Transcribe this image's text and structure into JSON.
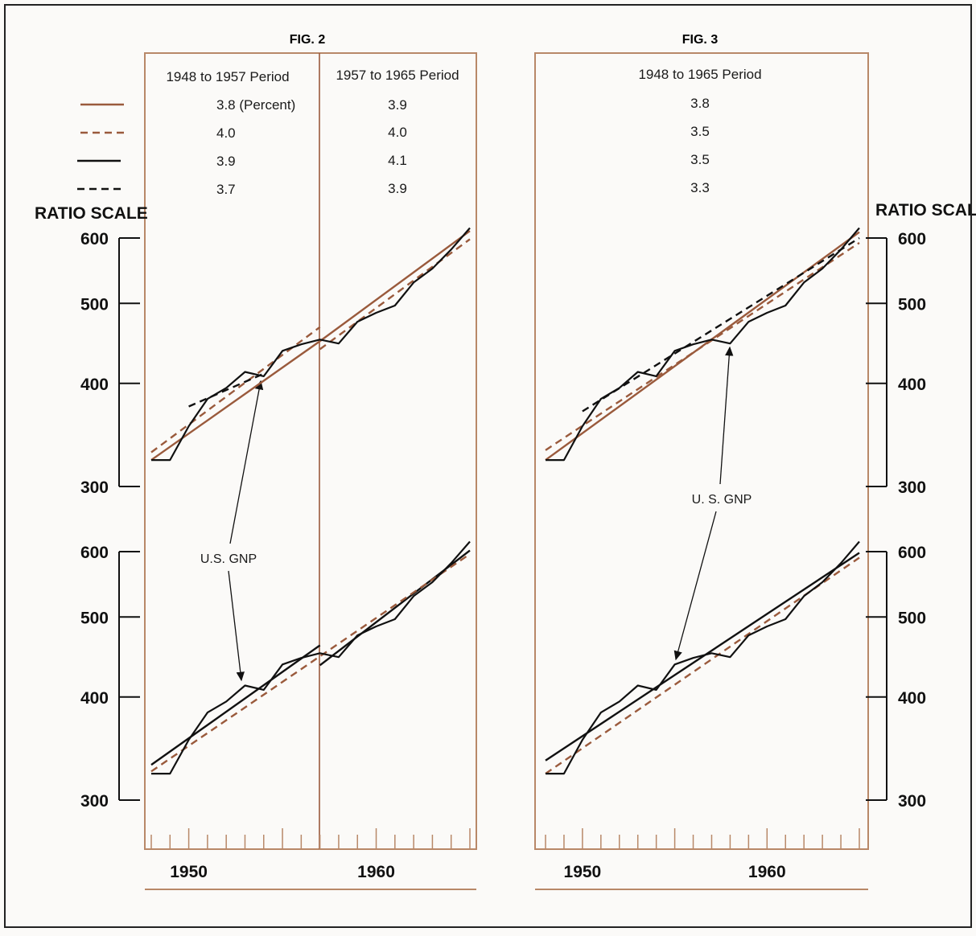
{
  "colors": {
    "brown": "#9a5a3c",
    "black": "#111111"
  },
  "legend": {
    "styles": [
      {
        "name": "brown-solid",
        "color": "#9a5a3c",
        "dash": "solid"
      },
      {
        "name": "brown-dashed",
        "color": "#9a5a3c",
        "dash": "dashed"
      },
      {
        "name": "black-solid",
        "color": "#111111",
        "dash": "solid"
      },
      {
        "name": "black-dashed",
        "color": "#111111",
        "dash": "dashed"
      }
    ]
  },
  "ratio_scale_label": "RATIO SCALE",
  "chart_data": [
    {
      "type": "line",
      "title": "FIG. 2",
      "y_scale": "log",
      "ylim": [
        300,
        600
      ],
      "y_ticks": [
        300,
        400,
        500,
        600
      ],
      "y_tick_labels": [
        "300",
        "400",
        "500",
        "600"
      ],
      "xlim": [
        1948,
        1966
      ],
      "x_tick_labels": [
        "1950",
        "1960"
      ],
      "periods": [
        {
          "label": "1948 to 1957 Period",
          "range": [
            1948,
            1957
          ],
          "rates": [
            "3.8 (Percent)",
            "4.0",
            "3.9",
            "3.7"
          ]
        },
        {
          "label": "1957 to 1965 Period",
          "range": [
            1957,
            1965
          ],
          "rates": [
            "3.9",
            "4.0",
            "4.1",
            "3.9"
          ]
        }
      ],
      "annotation": "U.S.  GNP",
      "gnp": {
        "x": [
          1948,
          1949,
          1950,
          1951,
          1952,
          1953,
          1954,
          1955,
          1956,
          1957,
          1958,
          1959,
          1960,
          1961,
          1962,
          1963,
          1964,
          1965
        ],
        "y": [
          323,
          323,
          355,
          383,
          395,
          413,
          408,
          438,
          446,
          452,
          447,
          475,
          487,
          497,
          530,
          551,
          581,
          617
        ]
      },
      "panels": [
        {
          "name": "upper",
          "trends": [
            {
              "style": "brown-solid",
              "segments": [
                {
                  "x": [
                    1948,
                    1957
                  ],
                  "y": [
                    323,
                    450
                  ]
                },
                {
                  "x": [
                    1957,
                    1965
                  ],
                  "y": [
                    450,
                    612
                  ]
                }
              ]
            },
            {
              "style": "brown-dashed",
              "segments": [
                {
                  "x": [
                    1948,
                    1957
                  ],
                  "y": [
                    330,
                    468
                  ]
                },
                {
                  "x": [
                    1957,
                    1965
                  ],
                  "y": [
                    440,
                    598
                  ]
                }
              ]
            },
            {
              "style": "black-dashed",
              "segments": [
                {
                  "x": [
                    1950,
                    1954
                  ],
                  "y": [
                    375,
                    411
                  ]
                }
              ]
            }
          ]
        },
        {
          "name": "lower",
          "trends": [
            {
              "style": "black-solid",
              "segments": [
                {
                  "x": [
                    1948,
                    1957
                  ],
                  "y": [
                    331,
                    462
                  ]
                },
                {
                  "x": [
                    1957,
                    1965
                  ],
                  "y": [
                    437,
                    602
                  ]
                }
              ]
            },
            {
              "style": "brown-dashed",
              "segments": [
                {
                  "x": [
                    1948,
                    1965
                  ],
                  "y": [
                    325,
                    596
                  ]
                }
              ]
            }
          ]
        }
      ]
    },
    {
      "type": "line",
      "title": "FIG. 3",
      "y_scale": "log",
      "ylim": [
        300,
        600
      ],
      "y_ticks": [
        300,
        400,
        500,
        600
      ],
      "y_tick_labels": [
        "300",
        "400",
        "500",
        "600"
      ],
      "xlim": [
        1948,
        1966
      ],
      "x_tick_labels": [
        "1950",
        "1960"
      ],
      "periods": [
        {
          "label": "1948 to 1965 Period",
          "range": [
            1948,
            1965
          ],
          "rates": [
            "3.8",
            "3.5",
            "3.5",
            "3.3"
          ]
        }
      ],
      "annotation": "U. S. GNP",
      "gnp": {
        "x": [
          1948,
          1949,
          1950,
          1951,
          1952,
          1953,
          1954,
          1955,
          1956,
          1957,
          1958,
          1959,
          1960,
          1961,
          1962,
          1963,
          1964,
          1965
        ],
        "y": [
          323,
          323,
          355,
          383,
          395,
          413,
          408,
          438,
          446,
          452,
          447,
          475,
          487,
          497,
          530,
          551,
          581,
          617
        ]
      },
      "panels": [
        {
          "name": "upper",
          "trends": [
            {
              "style": "brown-solid",
              "segments": [
                {
                  "x": [
                    1948,
                    1965
                  ],
                  "y": [
                    323,
                    610
                  ]
                }
              ]
            },
            {
              "style": "brown-dashed",
              "segments": [
                {
                  "x": [
                    1948,
                    1965
                  ],
                  "y": [
                    332,
                    592
                  ]
                }
              ]
            },
            {
              "style": "black-dashed",
              "segments": [
                {
                  "x": [
                    1950,
                    1965
                  ],
                  "y": [
                    370,
                    600
                  ]
                }
              ]
            }
          ]
        },
        {
          "name": "lower",
          "trends": [
            {
              "style": "black-solid",
              "segments": [
                {
                  "x": [
                    1948,
                    1965
                  ],
                  "y": [
                    335,
                    598
                  ]
                }
              ]
            },
            {
              "style": "brown-dashed",
              "segments": [
                {
                  "x": [
                    1948,
                    1965
                  ],
                  "y": [
                    323,
                    590
                  ]
                }
              ]
            }
          ]
        }
      ]
    }
  ]
}
